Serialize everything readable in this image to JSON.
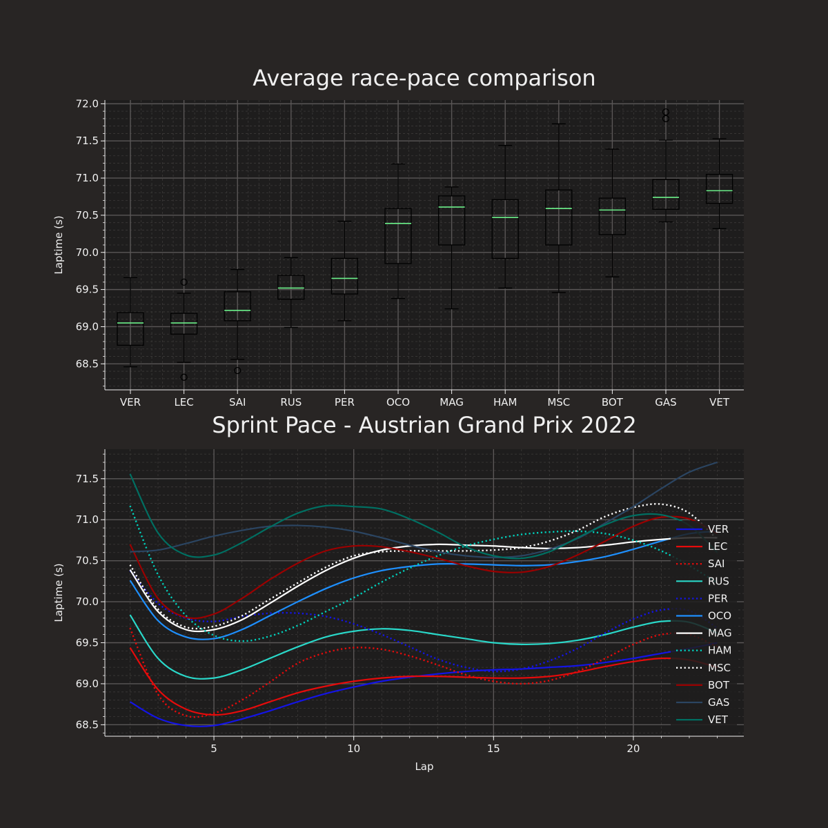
{
  "chart_data": [
    {
      "type": "box",
      "title": "Average race-pace comparison",
      "xlabel": "",
      "ylabel": "Laptime (s)",
      "ylim": [
        68.15,
        72.05
      ],
      "yticks": [
        68.5,
        69.0,
        69.5,
        70.0,
        70.5,
        71.0,
        71.5,
        72.0
      ],
      "ytick_labels": [
        "68.5",
        "69.0",
        "69.5",
        "70.0",
        "70.5",
        "71.0",
        "71.5",
        "72.0"
      ],
      "grid": true,
      "median_color": "#6cf28a",
      "categories": [
        "VER",
        "LEC",
        "SAI",
        "RUS",
        "PER",
        "OCO",
        "MAG",
        "HAM",
        "MSC",
        "BOT",
        "GAS",
        "VET"
      ],
      "boxes": [
        {
          "whislo": 68.46,
          "q1": 68.75,
          "med": 69.05,
          "q3": 69.19,
          "whishi": 69.66,
          "fliers": []
        },
        {
          "whislo": 68.52,
          "q1": 68.9,
          "med": 69.05,
          "q3": 69.18,
          "whishi": 69.45,
          "fliers": [
            69.6,
            68.32
          ]
        },
        {
          "whislo": 68.56,
          "q1": 69.08,
          "med": 69.22,
          "q3": 69.47,
          "whishi": 69.77,
          "fliers": [
            68.41
          ]
        },
        {
          "whislo": 68.99,
          "q1": 69.37,
          "med": 69.52,
          "q3": 69.69,
          "whishi": 69.93,
          "fliers": []
        },
        {
          "whislo": 69.08,
          "q1": 69.44,
          "med": 69.65,
          "q3": 69.92,
          "whishi": 70.42,
          "fliers": []
        },
        {
          "whislo": 69.38,
          "q1": 69.85,
          "med": 70.39,
          "q3": 70.59,
          "whishi": 71.19,
          "fliers": []
        },
        {
          "whislo": 69.24,
          "q1": 70.1,
          "med": 70.61,
          "q3": 70.76,
          "whishi": 70.88,
          "fliers": []
        },
        {
          "whislo": 69.52,
          "q1": 69.92,
          "med": 70.47,
          "q3": 70.71,
          "whishi": 71.44,
          "fliers": []
        },
        {
          "whislo": 69.46,
          "q1": 70.1,
          "med": 70.59,
          "q3": 70.84,
          "whishi": 71.73,
          "fliers": []
        },
        {
          "whislo": 69.67,
          "q1": 70.24,
          "med": 70.57,
          "q3": 70.73,
          "whishi": 71.39,
          "fliers": []
        },
        {
          "whislo": 70.41,
          "q1": 70.58,
          "med": 70.74,
          "q3": 70.98,
          "whishi": 71.51,
          "fliers": [
            71.8,
            71.89
          ]
        },
        {
          "whislo": 70.32,
          "q1": 70.66,
          "med": 70.83,
          "q3": 71.05,
          "whishi": 71.53,
          "fliers": []
        }
      ]
    },
    {
      "type": "line",
      "title": "Sprint Pace - Austrian Grand Prix 2022",
      "xlabel": "Lap",
      "ylabel": "Laptime (s)",
      "xlim": [
        1.1,
        23.95
      ],
      "ylim": [
        68.36,
        71.86
      ],
      "xticks": [
        5,
        10,
        15,
        20
      ],
      "xtick_labels": [
        "5",
        "10",
        "15",
        "20"
      ],
      "yticks": [
        68.5,
        69.0,
        69.5,
        70.0,
        70.5,
        71.0,
        71.5
      ],
      "ytick_labels": [
        "68.5",
        "69.0",
        "69.5",
        "70.0",
        "70.5",
        "71.0",
        "71.5"
      ],
      "grid": true,
      "legend_position": "right",
      "x": [
        2,
        3,
        4,
        5,
        6,
        7,
        8,
        9,
        10,
        11,
        12,
        13,
        14,
        15,
        16,
        17,
        18,
        19,
        20,
        21,
        22,
        23
      ],
      "series": [
        {
          "name": "VER",
          "color": "#1414e6",
          "dash": "solid",
          "values": [
            68.78,
            68.58,
            68.49,
            68.49,
            68.57,
            68.67,
            68.78,
            68.88,
            68.96,
            69.03,
            69.08,
            69.12,
            69.15,
            69.17,
            69.18,
            69.2,
            69.22,
            69.26,
            69.31,
            69.37,
            69.43,
            69.5
          ]
        },
        {
          "name": "LEC",
          "color": "#e60b0b",
          "dash": "solid",
          "values": [
            69.44,
            68.93,
            68.69,
            68.62,
            68.67,
            68.78,
            68.89,
            68.97,
            69.03,
            69.07,
            69.09,
            69.09,
            69.08,
            69.07,
            69.07,
            69.09,
            69.14,
            69.21,
            69.27,
            69.31,
            69.29,
            69.2
          ]
        },
        {
          "name": "SAI",
          "color": "#e60b0b",
          "dash": "dot",
          "values": [
            69.68,
            68.87,
            68.61,
            68.64,
            68.8,
            69.02,
            69.25,
            69.38,
            69.44,
            69.42,
            69.34,
            69.23,
            69.11,
            69.03,
            69.0,
            69.04,
            69.15,
            69.31,
            69.48,
            69.6,
            69.6,
            69.45
          ]
        },
        {
          "name": "RUS",
          "color": "#2ad8c9",
          "dash": "solid",
          "values": [
            69.84,
            69.31,
            69.09,
            69.07,
            69.17,
            69.31,
            69.45,
            69.57,
            69.64,
            69.67,
            69.65,
            69.6,
            69.55,
            69.5,
            69.48,
            69.49,
            69.53,
            69.6,
            69.69,
            69.76,
            69.75,
            69.62
          ]
        },
        {
          "name": "PER",
          "color": "#1414e6",
          "dash": "dot",
          "values": [
            70.38,
            69.98,
            69.8,
            69.76,
            69.82,
            69.86,
            69.86,
            69.82,
            69.73,
            69.6,
            69.45,
            69.3,
            69.2,
            69.15,
            69.18,
            69.28,
            69.43,
            69.62,
            69.79,
            69.9,
            69.89,
            69.68
          ]
        },
        {
          "name": "OCO",
          "color": "#1e90ff",
          "dash": "solid",
          "values": [
            70.26,
            69.77,
            69.57,
            69.55,
            69.66,
            69.83,
            70.0,
            70.16,
            70.29,
            70.38,
            70.43,
            70.46,
            70.46,
            70.45,
            70.44,
            70.45,
            70.49,
            70.55,
            70.64,
            70.74,
            70.83,
            70.86
          ]
        },
        {
          "name": "MAG",
          "color": "#ffffff",
          "dash": "solid",
          "values": [
            70.39,
            69.88,
            69.66,
            69.66,
            69.78,
            69.98,
            70.19,
            70.38,
            70.53,
            70.63,
            70.68,
            70.7,
            70.69,
            70.68,
            70.66,
            70.65,
            70.66,
            70.69,
            70.73,
            70.76,
            70.78,
            70.78
          ]
        },
        {
          "name": "HAM",
          "color": "#00d2be",
          "dash": "dot",
          "values": [
            71.17,
            70.33,
            69.83,
            69.59,
            69.52,
            69.58,
            69.71,
            69.88,
            70.05,
            70.24,
            70.41,
            70.56,
            70.68,
            70.76,
            70.82,
            70.85,
            70.86,
            70.83,
            70.75,
            70.62,
            70.44,
            70.23
          ]
        },
        {
          "name": "MSC",
          "color": "#ffffff",
          "dash": "dot",
          "values": [
            70.45,
            69.91,
            69.69,
            69.7,
            69.83,
            70.03,
            70.23,
            70.42,
            70.56,
            70.61,
            70.62,
            70.62,
            70.62,
            70.63,
            70.66,
            70.74,
            70.87,
            71.04,
            71.15,
            71.19,
            71.08,
            70.76
          ]
        },
        {
          "name": "BOT",
          "color": "#9b0000",
          "dash": "solid",
          "values": [
            70.7,
            70.04,
            69.81,
            69.85,
            70.04,
            70.27,
            70.47,
            70.62,
            70.68,
            70.67,
            70.61,
            70.53,
            70.44,
            70.37,
            70.36,
            70.43,
            70.57,
            70.74,
            70.92,
            71.03,
            71.01,
            70.83
          ]
        },
        {
          "name": "GAS",
          "color": "#2b4562",
          "dash": "solid",
          "values": [
            70.61,
            70.63,
            70.71,
            70.8,
            70.87,
            70.92,
            70.93,
            70.91,
            70.86,
            70.78,
            70.69,
            70.61,
            70.56,
            70.54,
            70.56,
            70.64,
            70.77,
            70.96,
            71.16,
            71.38,
            71.58,
            71.7
          ]
        },
        {
          "name": "VET",
          "color": "#006f62",
          "dash": "solid",
          "values": [
            71.56,
            70.84,
            70.57,
            70.57,
            70.72,
            70.91,
            71.08,
            71.17,
            71.16,
            71.13,
            71.01,
            70.85,
            70.67,
            70.56,
            70.53,
            70.61,
            70.78,
            70.94,
            71.05,
            71.06,
            70.93,
            70.6
          ]
        }
      ]
    }
  ]
}
